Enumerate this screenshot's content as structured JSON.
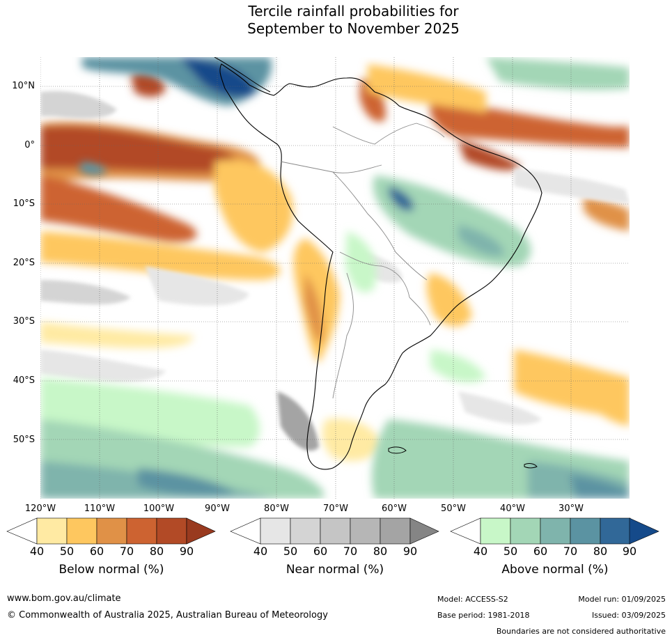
{
  "title_line1": "Tercile rainfall probabilities for",
  "title_line2": "September to November 2025",
  "lat_labels": [
    "10°N",
    "0°",
    "10°S",
    "20°S",
    "30°S",
    "40°S",
    "50°S"
  ],
  "lon_labels": [
    "120°W",
    "110°W",
    "100°W",
    "90°W",
    "80°W",
    "70°W",
    "60°W",
    "50°W",
    "40°W",
    "30°W"
  ],
  "colorbars": [
    {
      "name": "below",
      "title": "Below normal (%)",
      "ticks": [
        "40",
        "50",
        "60",
        "70",
        "80",
        "90"
      ],
      "colors": [
        "#ffffff",
        "#ffeaa3",
        "#fec75f",
        "#e09147",
        "#cd6331",
        "#b24a26",
        "#993a1f"
      ]
    },
    {
      "name": "near",
      "title": "Near normal (%)",
      "ticks": [
        "40",
        "50",
        "60",
        "70",
        "80",
        "90"
      ],
      "colors": [
        "#ffffff",
        "#e6e6e6",
        "#d4d4d4",
        "#c5c5c5",
        "#b6b6b6",
        "#a4a4a4",
        "#858585"
      ]
    },
    {
      "name": "above",
      "title": "Above normal (%)",
      "ticks": [
        "40",
        "50",
        "60",
        "70",
        "80",
        "90"
      ],
      "colors": [
        "#ffffff",
        "#c8f7c8",
        "#a3d6b6",
        "#7fb4ac",
        "#5b93a2",
        "#316898",
        "#154a8a"
      ]
    }
  ],
  "footer": {
    "website": "www.bom.gov.au/climate",
    "copyright": "© Commonwealth of Australia 2025, Australian Bureau of Meteorology",
    "model": "Model: ACCESS-S2",
    "base_period": "Base period: 1981-2018",
    "model_run": "Model run: 01/09/2025",
    "issued": "Issued: 03/09/2025",
    "disclaimer": "Boundaries are not considered authoritative"
  }
}
